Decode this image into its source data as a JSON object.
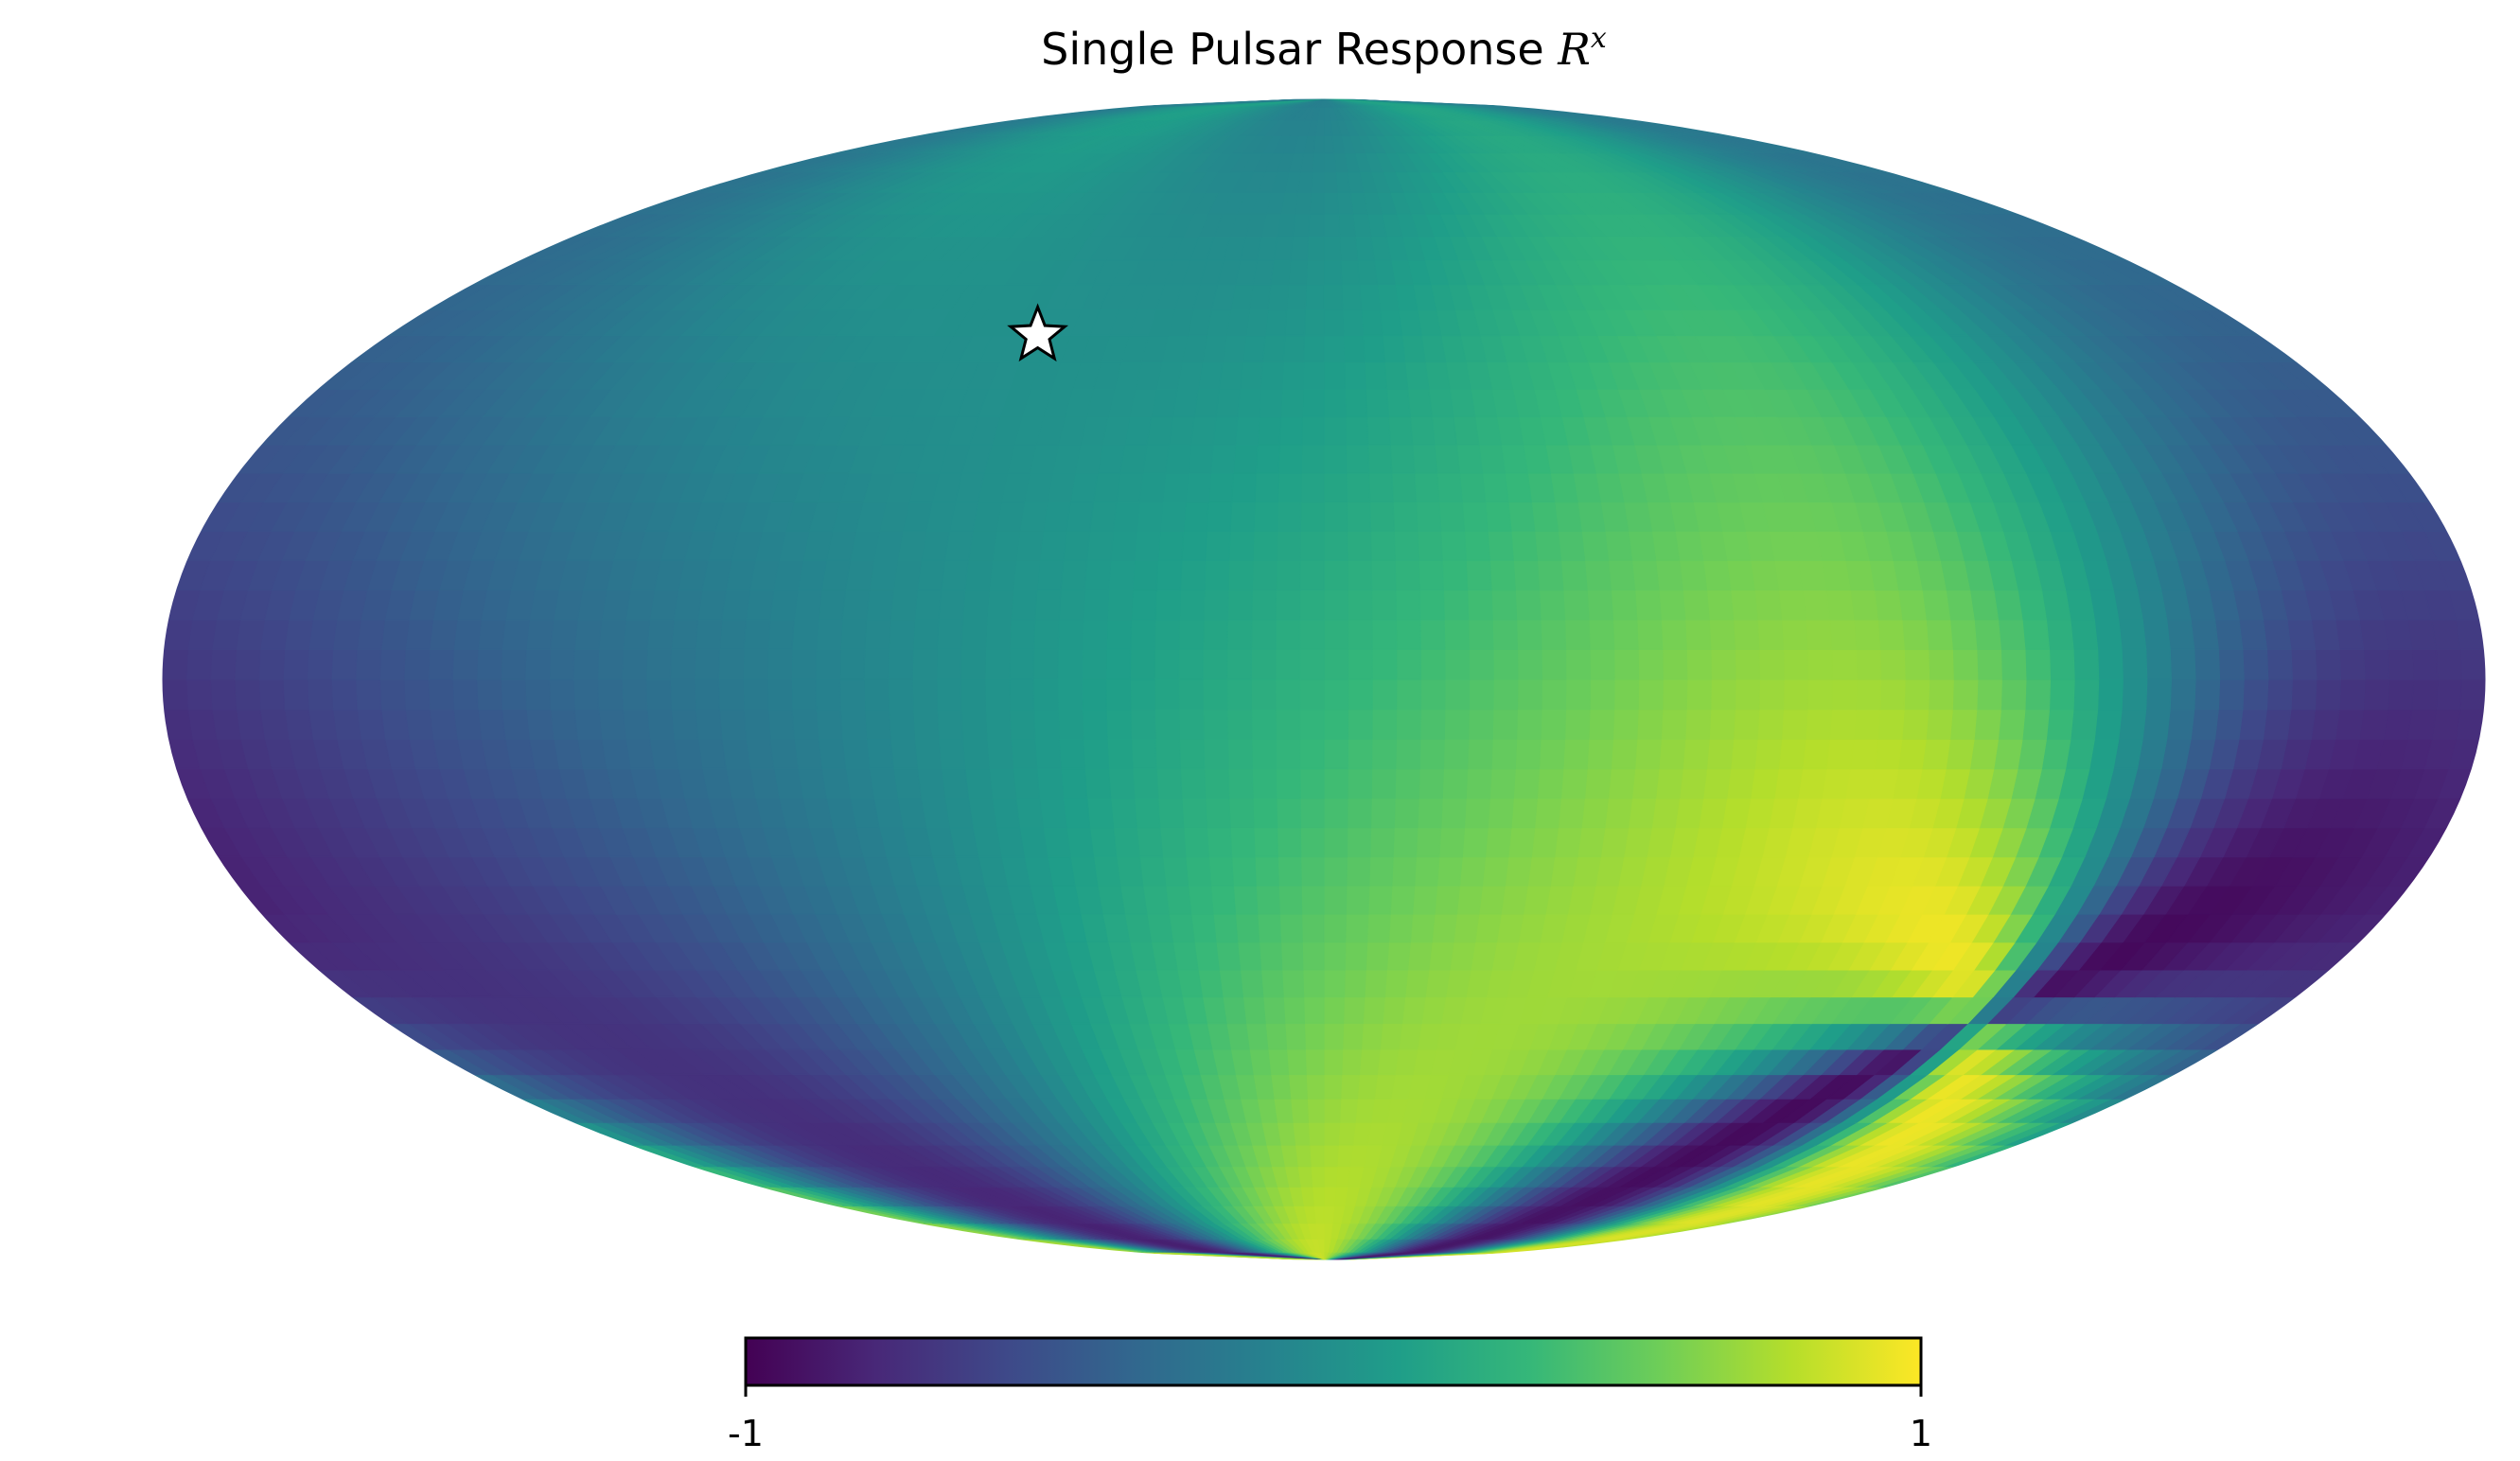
{
  "chart_data": {
    "type": "heatmap",
    "projection": "mollweide",
    "title": {
      "text": "Single Pulsar Response ",
      "math_base": "R",
      "math_superscript": "x"
    },
    "colormap": "viridis",
    "colormap_stops": [
      "#440154",
      "#482878",
      "#3e4989",
      "#31688e",
      "#26828e",
      "#1f9e89",
      "#35b779",
      "#6ece58",
      "#b5de2b",
      "#fde725"
    ],
    "colorbar": {
      "min": -1,
      "max": 1,
      "tick_labels": [
        "-1",
        "1"
      ],
      "orientation": "horizontal",
      "placement": "bottom"
    },
    "marker": {
      "symbol": "star",
      "description": "pulsar position",
      "longitude_deg": 55,
      "latitude_deg": 45,
      "fill": "#ffffff",
      "edge": "#000000"
    },
    "grid": false,
    "legend": "none"
  }
}
